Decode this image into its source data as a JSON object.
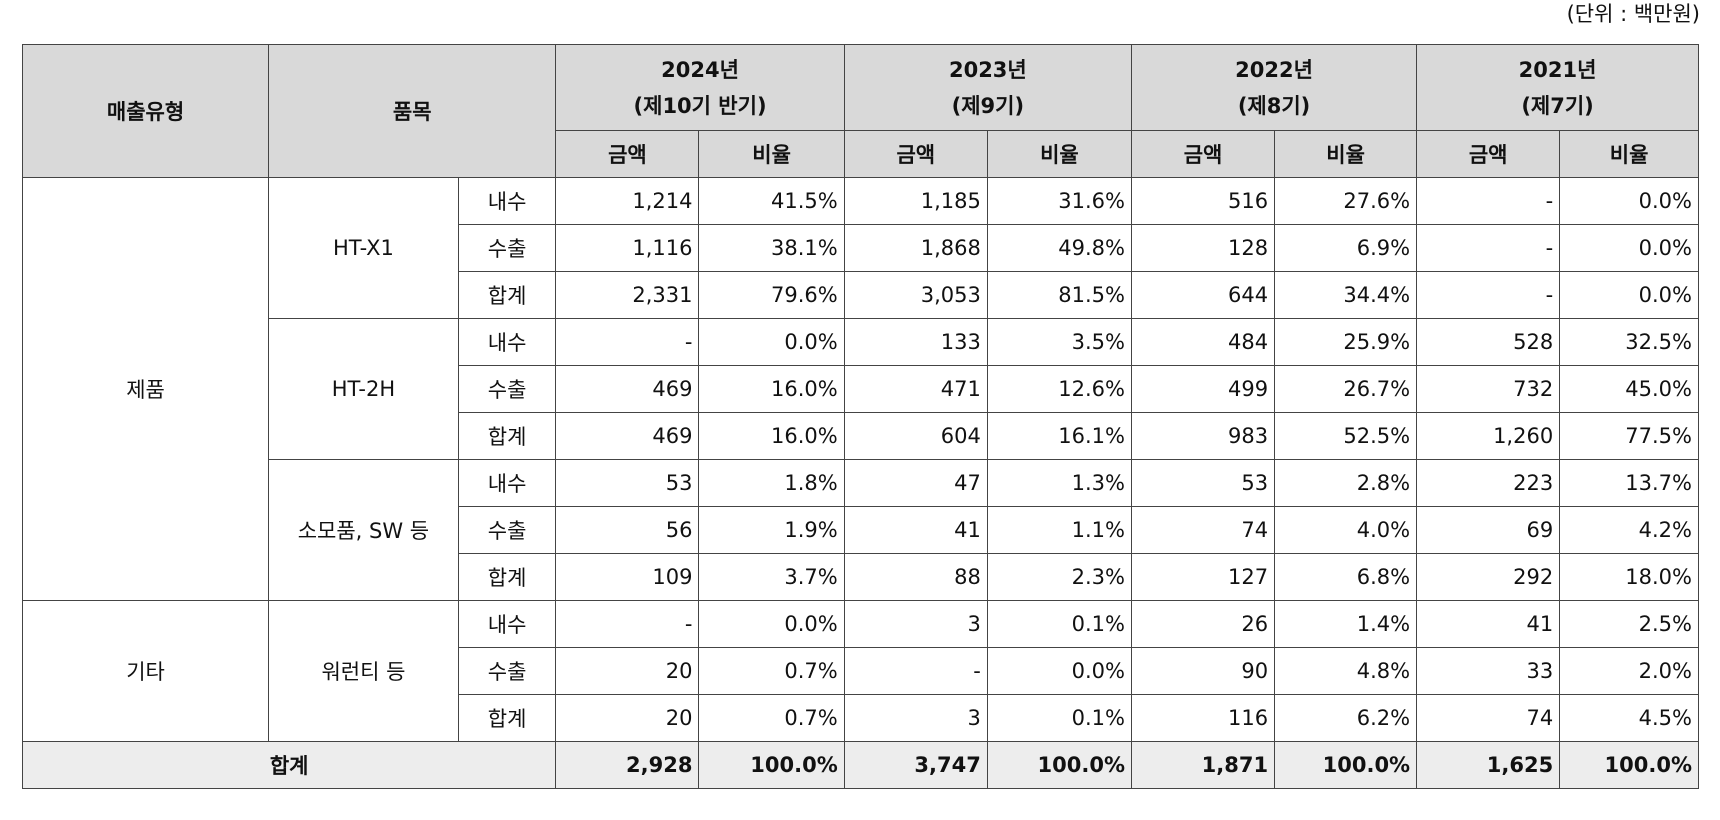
{
  "unit_note": "(단위 : 백만원)",
  "header": {
    "sales_type": "매출유형",
    "item": "품목",
    "years": [
      {
        "year": "2024년",
        "period": "(제10기 반기)"
      },
      {
        "year": "2023년",
        "period": "(제9기)"
      },
      {
        "year": "2022년",
        "period": "(제8기)"
      },
      {
        "year": "2021년",
        "period": "(제7기)"
      }
    ],
    "amount": "금액",
    "ratio": "비율"
  },
  "groups": [
    {
      "type": "제품",
      "items": [
        {
          "name": "HT-X1",
          "rows": [
            {
              "sub": "내수",
              "cells": [
                "1,214",
                "41.5%",
                "1,185",
                "31.6%",
                "516",
                "27.6%",
                "-",
                "0.0%"
              ]
            },
            {
              "sub": "수출",
              "cells": [
                "1,116",
                "38.1%",
                "1,868",
                "49.8%",
                "128",
                "6.9%",
                "-",
                "0.0%"
              ]
            },
            {
              "sub": "합계",
              "cells": [
                "2,331",
                "79.6%",
                "3,053",
                "81.5%",
                "644",
                "34.4%",
                "-",
                "0.0%"
              ]
            }
          ]
        },
        {
          "name": "HT-2H",
          "rows": [
            {
              "sub": "내수",
              "cells": [
                "-",
                "0.0%",
                "133",
                "3.5%",
                "484",
                "25.9%",
                "528",
                "32.5%"
              ]
            },
            {
              "sub": "수출",
              "cells": [
                "469",
                "16.0%",
                "471",
                "12.6%",
                "499",
                "26.7%",
                "732",
                "45.0%"
              ]
            },
            {
              "sub": "합계",
              "cells": [
                "469",
                "16.0%",
                "604",
                "16.1%",
                "983",
                "52.5%",
                "1,260",
                "77.5%"
              ]
            }
          ]
        },
        {
          "name": "소모품, SW 등",
          "rows": [
            {
              "sub": "내수",
              "cells": [
                "53",
                "1.8%",
                "47",
                "1.3%",
                "53",
                "2.8%",
                "223",
                "13.7%"
              ]
            },
            {
              "sub": "수출",
              "cells": [
                "56",
                "1.9%",
                "41",
                "1.1%",
                "74",
                "4.0%",
                "69",
                "4.2%"
              ]
            },
            {
              "sub": "합계",
              "cells": [
                "109",
                "3.7%",
                "88",
                "2.3%",
                "127",
                "6.8%",
                "292",
                "18.0%"
              ]
            }
          ]
        }
      ]
    },
    {
      "type": "기타",
      "items": [
        {
          "name": "워런티 등",
          "rows": [
            {
              "sub": "내수",
              "cells": [
                "-",
                "0.0%",
                "3",
                "0.1%",
                "26",
                "1.4%",
                "41",
                "2.5%"
              ]
            },
            {
              "sub": "수출",
              "cells": [
                "20",
                "0.7%",
                "-",
                "0.0%",
                "90",
                "4.8%",
                "33",
                "2.0%"
              ]
            },
            {
              "sub": "합계",
              "cells": [
                "20",
                "0.7%",
                "3",
                "0.1%",
                "116",
                "6.2%",
                "74",
                "4.5%"
              ]
            }
          ]
        }
      ]
    }
  ],
  "total": {
    "label": "합계",
    "cells": [
      "2,928",
      "100.0%",
      "3,747",
      "100.0%",
      "1,871",
      "100.0%",
      "1,625",
      "100.0%"
    ]
  }
}
